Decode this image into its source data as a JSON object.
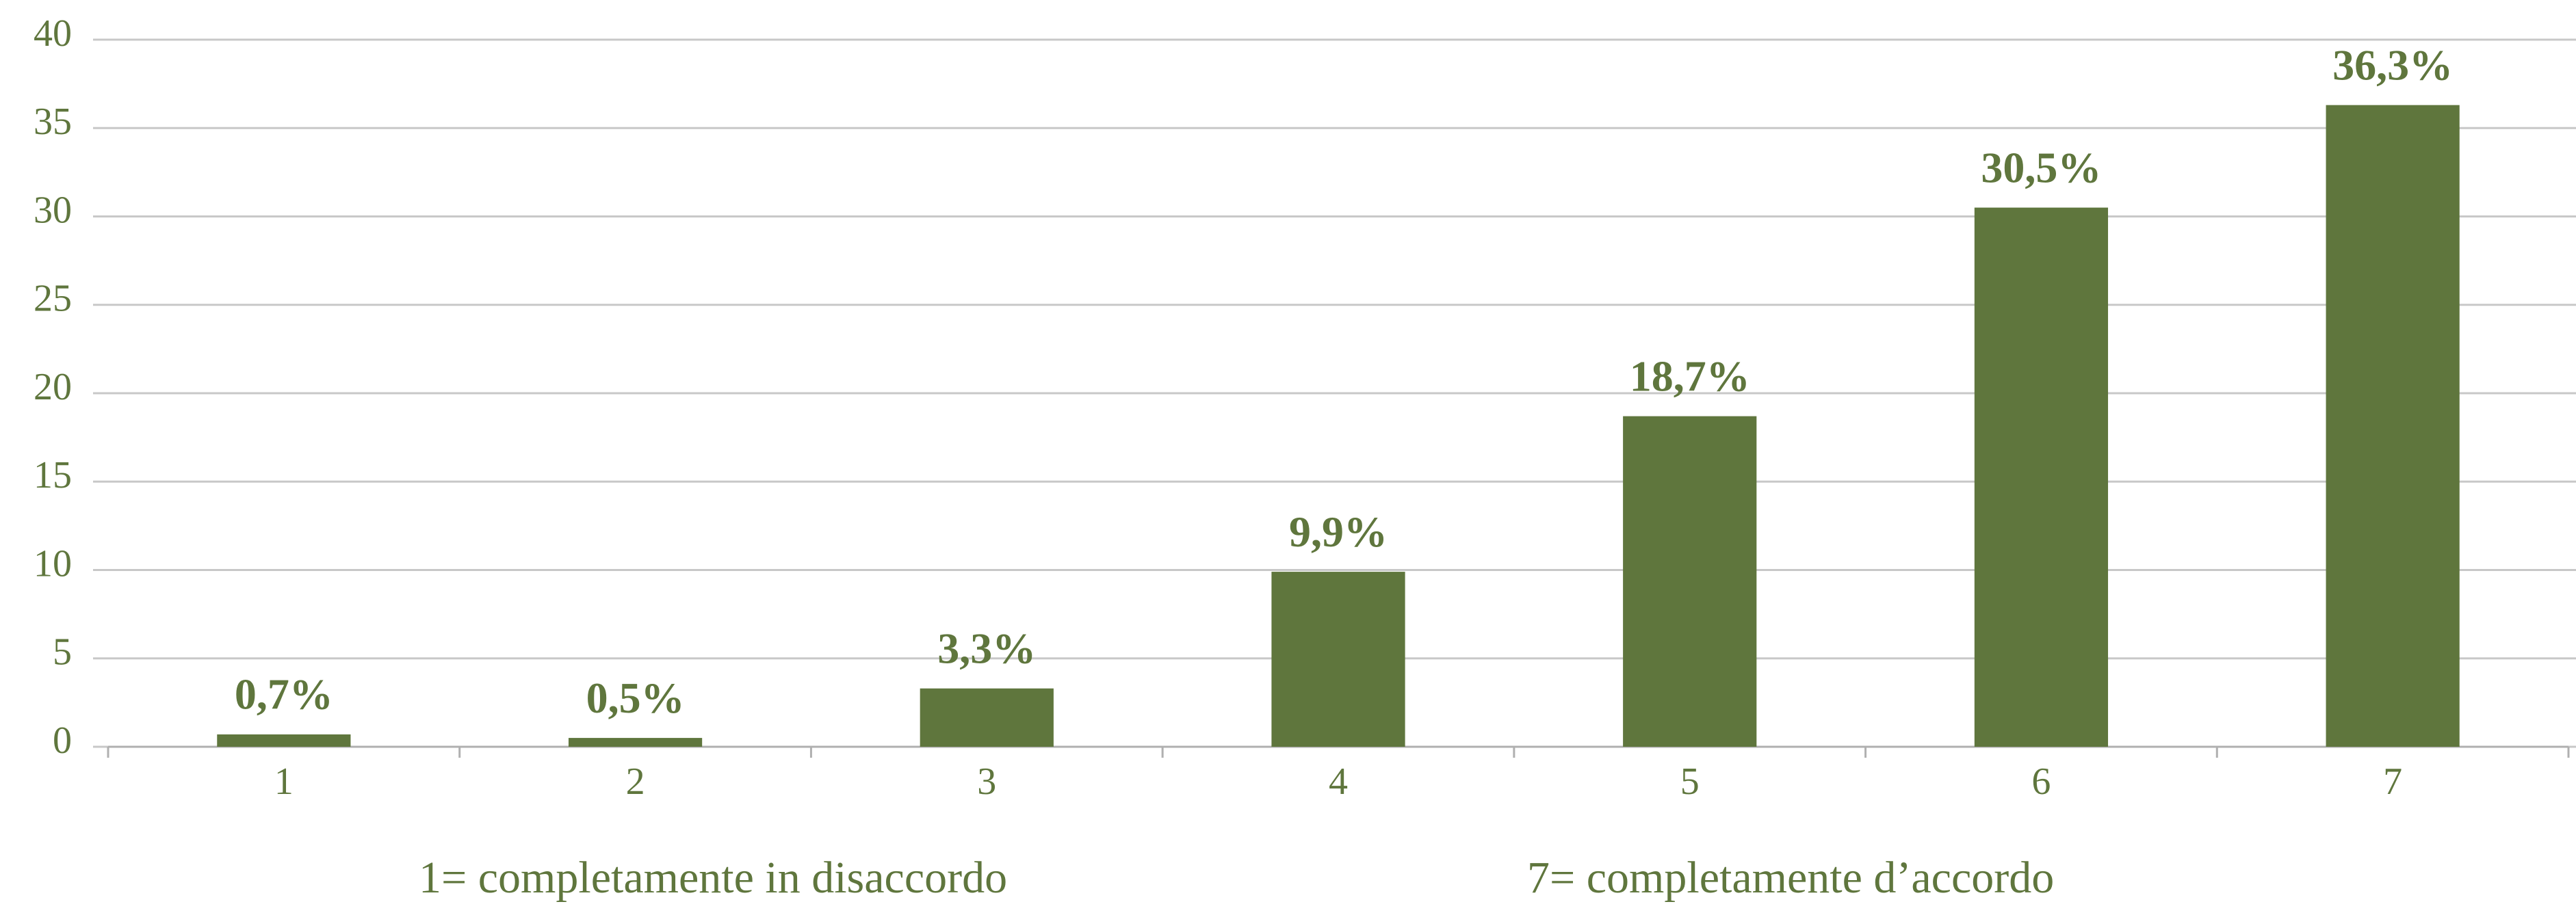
{
  "chart_data": {
    "type": "bar",
    "categories": [
      "1",
      "2",
      "3",
      "4",
      "5",
      "6",
      "7"
    ],
    "values": [
      0.7,
      0.5,
      3.3,
      9.9,
      18.7,
      30.5,
      36.3
    ],
    "value_labels": [
      "0,7%",
      "0,5%",
      "3,3%",
      "9,9%",
      "18,7%",
      "30,5%",
      "36,3%"
    ],
    "color": "#5f763d",
    "ylim": [
      0,
      40
    ],
    "yticks": [
      0,
      5,
      10,
      15,
      20,
      25,
      30,
      35,
      40
    ],
    "grid": true,
    "annotations": [
      "1= completamente in disaccordo",
      "7= completamente d’accordo"
    ]
  }
}
